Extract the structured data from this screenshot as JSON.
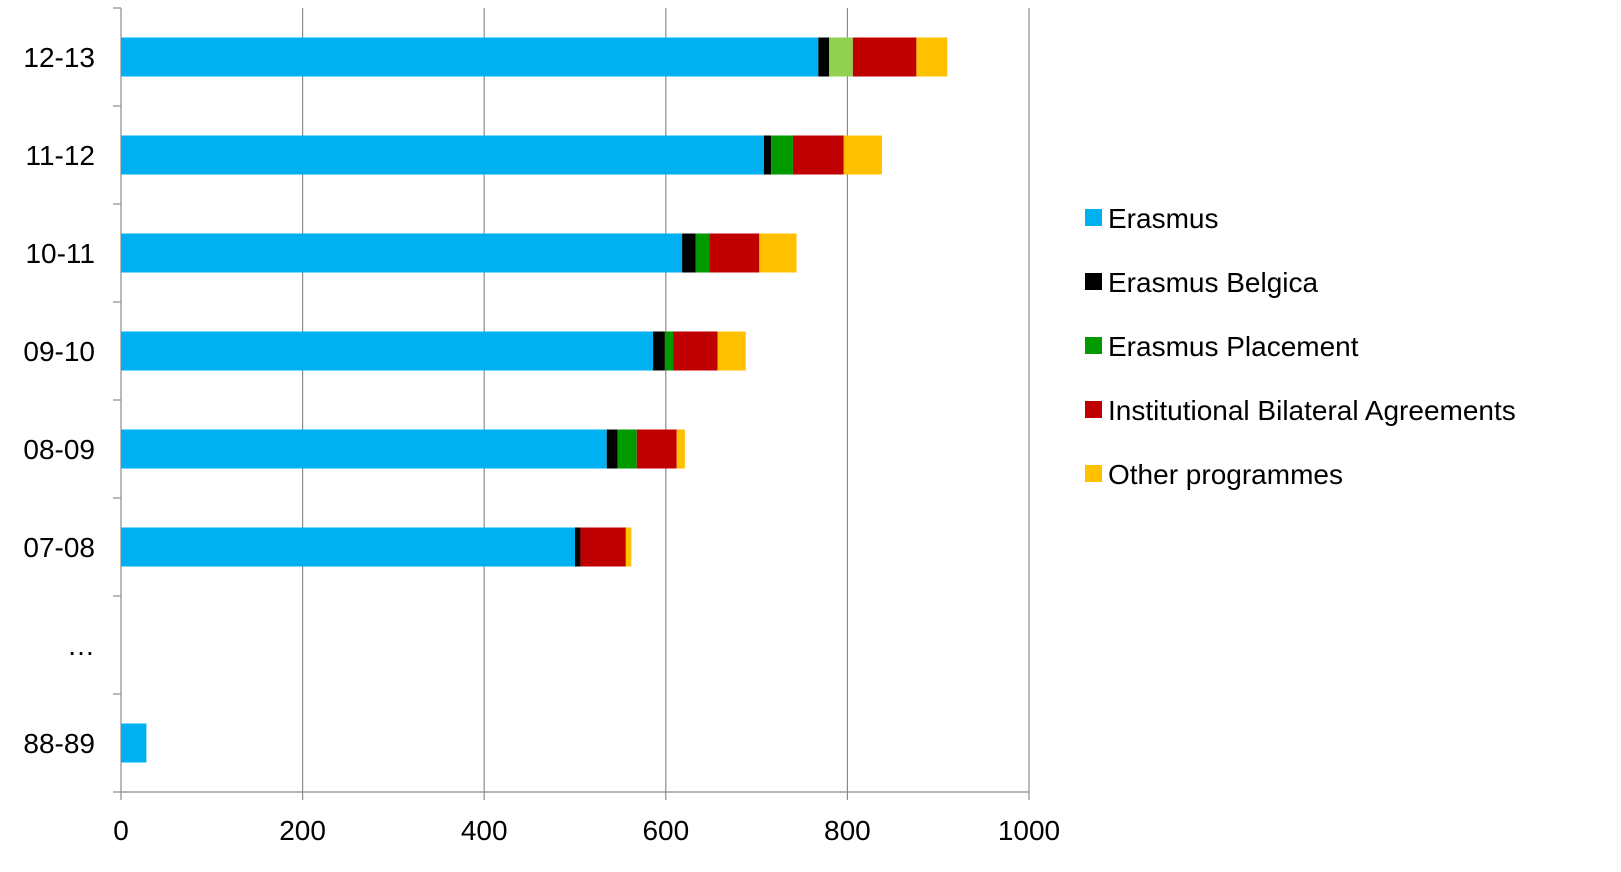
{
  "chart_data": {
    "type": "bar",
    "orientation": "horizontal",
    "stacked": true,
    "categories": [
      "12-13",
      "11-12",
      "10-11",
      "09-10",
      "08-09",
      "07-08",
      "…",
      "88-89"
    ],
    "series": [
      {
        "name": "Erasmus",
        "color": "#00B0F0",
        "values": [
          768,
          708,
          618,
          586,
          535,
          500,
          null,
          28
        ]
      },
      {
        "name": "Erasmus Belgica",
        "color": "#000000",
        "values": [
          12,
          8,
          15,
          13,
          12,
          6,
          null,
          0
        ]
      },
      {
        "name": "Erasmus Placement",
        "color": "#009900",
        "values": [
          26,
          24,
          15,
          9,
          21,
          0,
          null,
          0
        ]
      },
      {
        "name": "Institutional Bilateral Agreements",
        "color": "#C00000",
        "values": [
          70,
          56,
          55,
          49,
          44,
          50,
          null,
          0
        ]
      },
      {
        "name": "Other programmes",
        "color": "#FFC000",
        "values": [
          34,
          42,
          41,
          31,
          9,
          6,
          null,
          0
        ]
      }
    ],
    "segment_color_overrides": [
      {
        "category": "12-13",
        "series": "Erasmus Placement",
        "color": "#92D050"
      }
    ],
    "xlim": [
      0,
      1000
    ],
    "xticks": [
      0,
      200,
      400,
      600,
      800,
      1000
    ],
    "xlabel": "",
    "ylabel": "",
    "title": "",
    "grid": "vertical",
    "legend_position": "right"
  }
}
